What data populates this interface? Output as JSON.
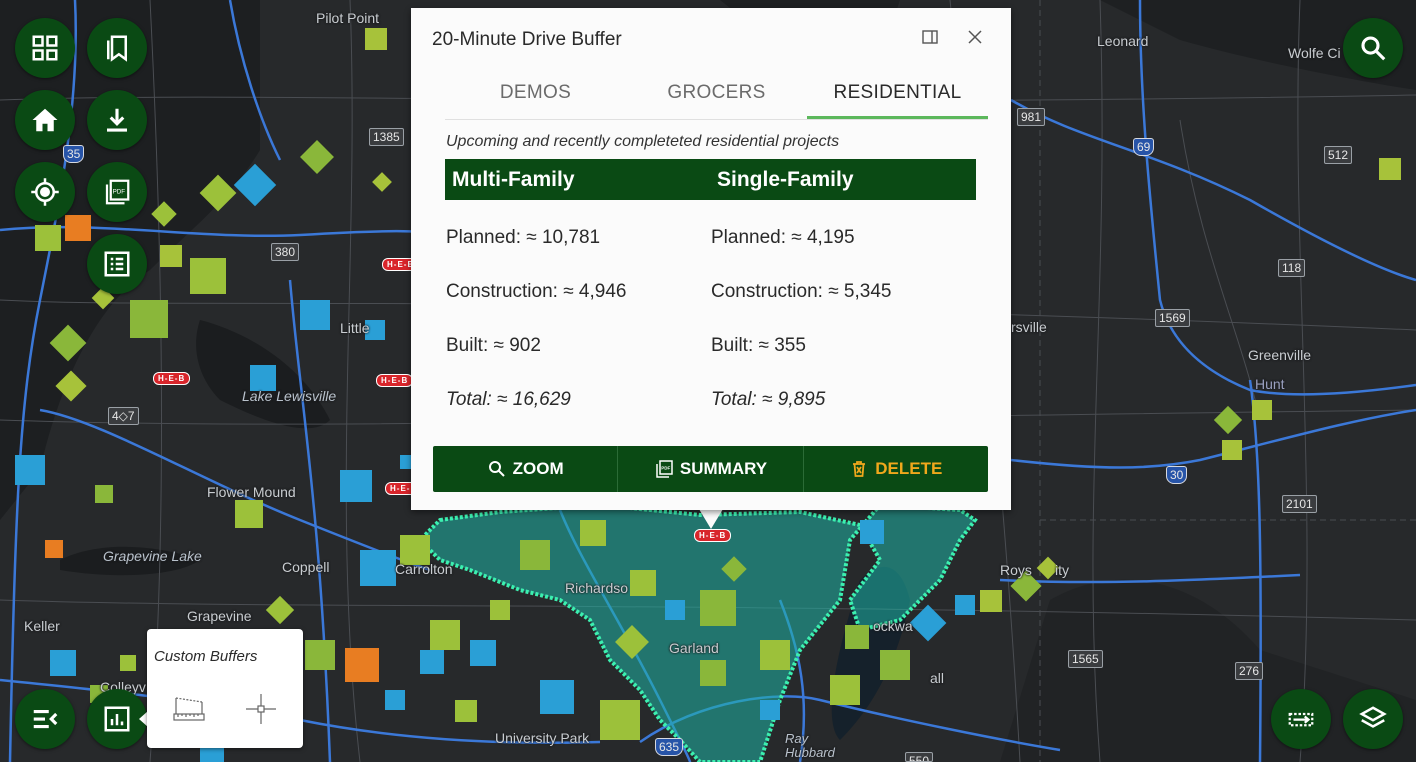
{
  "popup": {
    "title": "20-Minute Drive Buffer",
    "dock_icon": "dock-icon",
    "close_icon": "close-icon",
    "tabs": [
      {
        "label": "DEMOS",
        "active": false
      },
      {
        "label": "GROCERS",
        "active": false
      },
      {
        "label": "RESIDENTIAL",
        "active": true
      }
    ],
    "subtitle": "Upcoming and recently completeted residential projects",
    "columns": [
      {
        "header": "Multi-Family",
        "planned": "Planned: ≈ 10,781",
        "construction": "Construction: ≈ 4,946",
        "built": "Built: ≈ 902",
        "total": "Total: ≈ 16,629"
      },
      {
        "header": "Single-Family",
        "planned": "Planned: ≈ 4,195",
        "construction": "Construction: ≈ 5,345",
        "built": "Built: ≈ 355",
        "total": "Total: ≈ 9,895"
      }
    ],
    "actions": {
      "zoom": "ZOOM",
      "summary": "SUMMARY",
      "delete": "DELETE"
    }
  },
  "buffers_panel": {
    "title": "Custom Buffers"
  },
  "map_labels": {
    "pilot_point": "Pilot Point",
    "leonard": "Leonard",
    "wolfe_city": "Wolfe Ci",
    "little_elm": "Little",
    "lake_lewisville": "Lake Lewisville",
    "flower_mound": "Flower Mound",
    "grapevine_lake": "Grapevine Lake",
    "coppell": "Coppell",
    "carrollton": "Carrolton",
    "grapevine": "Grapevine",
    "keller": "Keller",
    "colleyville": "Colleyv",
    "richardson": "Richardso",
    "garland": "Garland",
    "rockwall": "ockwa",
    "rowlett": "Roys",
    "greenville": "Greenville",
    "hunt": "Hunt",
    "farmersville": "rsville",
    "university_park": "University Park",
    "ray_hubbard": "Ray Hubbard",
    "fate": "all",
    "royse_city": "ity"
  },
  "shields": {
    "s1385": "1385",
    "s35": "35",
    "s380": "380",
    "s407": "4◇7",
    "s981": "981",
    "s69": "69",
    "s512": "512",
    "s118": "118",
    "s1569": "1569",
    "s30": "30",
    "s2101": "2101",
    "s1565": "1565",
    "s276": "276",
    "s635": "635",
    "s550": "550"
  },
  "heb_label": "H-E-B",
  "colors": {
    "map_bg": "#242628",
    "brand_green": "#0a4a14",
    "tab_active": "#5cb85c",
    "delete": "#f0a81c",
    "buffer_fill": "#1fb5a6",
    "buffer_outline": "#3cf0b0",
    "road": "#3b78d8"
  },
  "left_toolbar_icons": [
    "grid-qr-icon",
    "bookmarks-icon",
    "home-icon",
    "download-icon",
    "locate-icon",
    "pdf-icon",
    "list-icon",
    "menu-collapse-icon",
    "chart-icon"
  ],
  "right_toolbar_icons": [
    "search-icon",
    "measure-icon",
    "layers-icon"
  ]
}
